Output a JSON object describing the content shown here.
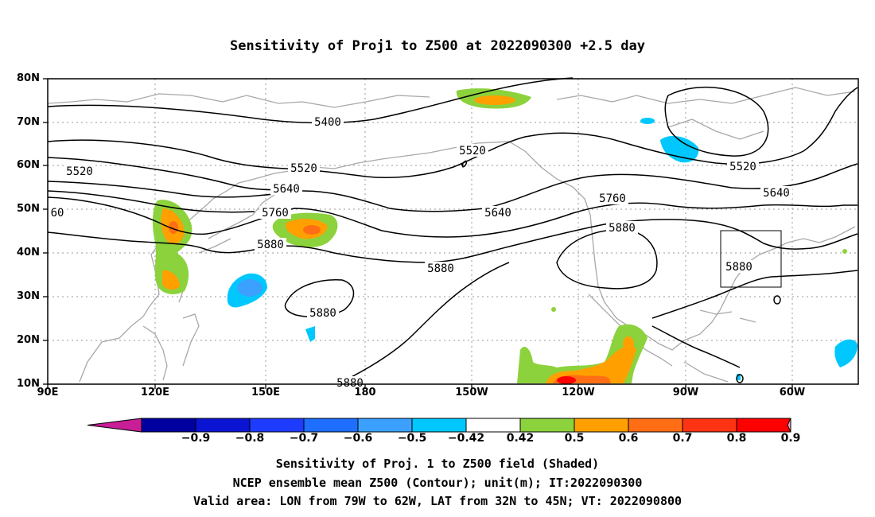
{
  "title": "Sensitivity of Proj1 to Z500 at 2022090300 +2.5 day",
  "lat_labels": [
    "80N",
    "70N",
    "60N",
    "50N",
    "40N",
    "30N",
    "20N",
    "10N"
  ],
  "lon_labels": [
    "90E",
    "120E",
    "150E",
    "180",
    "150W",
    "120W",
    "90W",
    "60W"
  ],
  "contour_labels": [
    "5400",
    "5520",
    "5520",
    "5520",
    "5520",
    "5640",
    "5640",
    "5640",
    "5760",
    "5760",
    "5880",
    "5880",
    "5880",
    "5880",
    "5880",
    "5880",
    "60"
  ],
  "colorbar": {
    "labels": [
      "-0.9",
      "-0.8",
      "-0.7",
      "-0.6",
      "-0.5",
      "-0.42",
      "0.42",
      "0.5",
      "0.6",
      "0.7",
      "0.8",
      "0.9"
    ],
    "colors": [
      "#0000a0",
      "#0a14d2",
      "#1e3cff",
      "#1e6eff",
      "#3ca0ff",
      "#00c8ff",
      "#ffffff",
      "#8cd23c",
      "#ffa000",
      "#ff6e14",
      "#ff3214",
      "#ff0000"
    ],
    "low_end_color": "#c81e96",
    "high_end_color": "#f0a0c8"
  },
  "valid_area": {
    "lon_from": "79W",
    "lon_to": "62W",
    "lat_from": "32N",
    "lat_to": "45N"
  },
  "captions": [
    "Sensitivity of Proj. 1 to Z500 field (Shaded)",
    "NCEP ensemble mean Z500 (Contour); unit(m); IT:2022090300",
    "Valid area: LON from 79W to 62W, LAT from 32N to 45N; VT: 2022090800"
  ]
}
